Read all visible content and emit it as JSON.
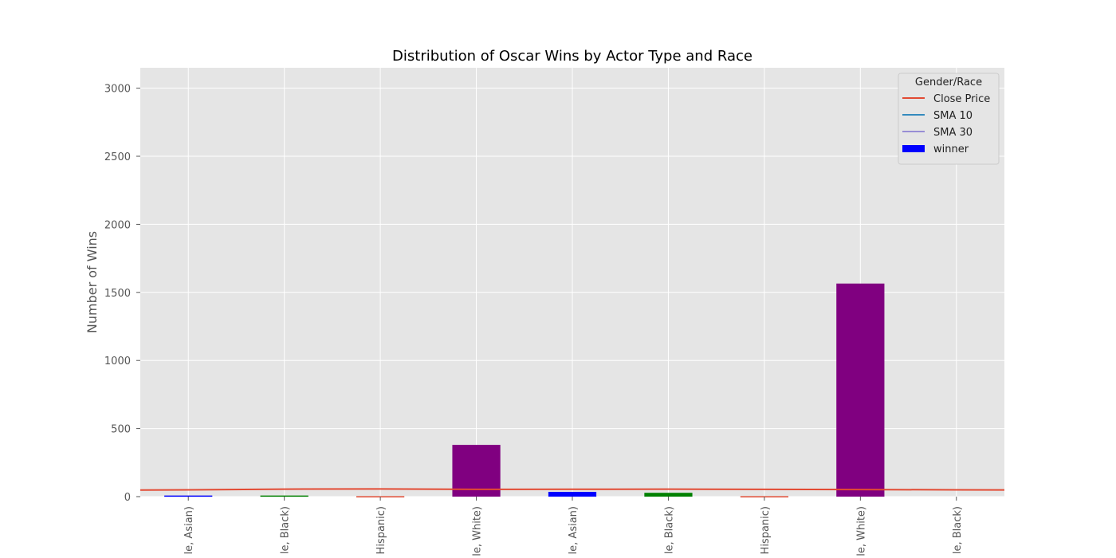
{
  "chart_data": {
    "type": "bar",
    "title": "Distribution of Oscar Wins by Actor Type and Race",
    "xlabel": "",
    "ylabel": "Number of Wins",
    "ylim": [
      0,
      3150
    ],
    "yticks": [
      0,
      500,
      1000,
      1500,
      2000,
      2500,
      3000
    ],
    "grid": true,
    "categories": [
      "le, Asian)",
      "le, Black)",
      "Hispanic)",
      "le, White)",
      "le, Asian)",
      "le, Black)",
      "Hispanic)",
      "le, White)",
      "le, Black)"
    ],
    "series": [
      {
        "name": "winner",
        "kind": "bar",
        "values": [
          8,
          8,
          3,
          380,
          35,
          28,
          3,
          1565,
          0
        ],
        "colors": [
          "#0000ff",
          "#008000",
          "#e24a33",
          "#800080",
          "#0000ff",
          "#008000",
          "#e24a33",
          "#800080",
          "#0000ff"
        ]
      },
      {
        "name": "Close Price",
        "kind": "line",
        "color": "#e24a33",
        "points": [
          [
            -0.5,
            48
          ],
          [
            0,
            50
          ],
          [
            1,
            55
          ],
          [
            2,
            56
          ],
          [
            3,
            53
          ],
          [
            4,
            54
          ],
          [
            5,
            55
          ],
          [
            6,
            53
          ],
          [
            7,
            52
          ],
          [
            8,
            50
          ],
          [
            8.5,
            49
          ]
        ]
      },
      {
        "name": "SMA 10",
        "kind": "line",
        "color": "#348abd",
        "points": []
      },
      {
        "name": "SMA 30",
        "kind": "line",
        "color": "#988ed5",
        "points": []
      }
    ],
    "legend": {
      "title": "Gender/Race",
      "placement": "top-right",
      "entries": [
        {
          "label": "Close Price",
          "kind": "line",
          "color": "#e24a33"
        },
        {
          "label": "SMA 10",
          "kind": "line",
          "color": "#348abd"
        },
        {
          "label": "SMA 30",
          "kind": "line",
          "color": "#988ed5"
        },
        {
          "label": "winner",
          "kind": "bar",
          "color": "#0000ff"
        }
      ]
    },
    "colors": {
      "plot_background": "#e5e5e5",
      "grid": "#ffffff"
    }
  }
}
